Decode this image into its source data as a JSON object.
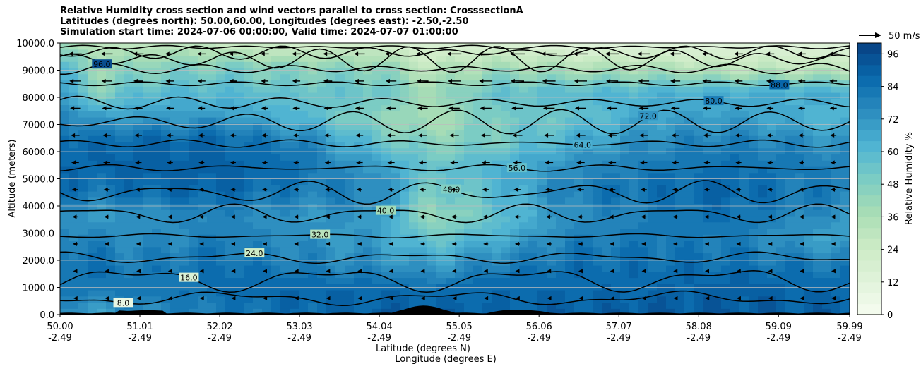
{
  "title_lines": [
    "Relative Humidity cross section and wind vectors parallel to cross section: CrosssectionA",
    "Latitudes (degrees north): 50.00,60.00, Longitudes (degrees east): -2.50,-2.50",
    "Simulation start time: 2024-07-06 00:00:00, Valid time: 2024-07-07 01:00:00"
  ],
  "chart_data": {
    "type": "heatmap",
    "title": "Relative Humidity cross section and wind vectors parallel to cross section: CrosssectionA",
    "ylabel": "Altitude (meters)",
    "xlabel_lines": [
      "Latitude (degrees N)",
      "Longitude (degrees E)"
    ],
    "ylim": [
      0,
      10000
    ],
    "xlim": [
      50.0,
      59.99
    ],
    "y_ticks": [
      "0.0",
      "1000.0",
      "2000.0",
      "3000.0",
      "4000.0",
      "5000.0",
      "6000.0",
      "7000.0",
      "8000.0",
      "9000.0",
      "10000.0"
    ],
    "x_ticks": [
      {
        "lat": "50.00",
        "lon": "-2.49"
      },
      {
        "lat": "51.01",
        "lon": "-2.49"
      },
      {
        "lat": "52.02",
        "lon": "-2.49"
      },
      {
        "lat": "53.03",
        "lon": "-2.49"
      },
      {
        "lat": "54.04",
        "lon": "-2.49"
      },
      {
        "lat": "55.05",
        "lon": "-2.49"
      },
      {
        "lat": "56.06",
        "lon": "-2.49"
      },
      {
        "lat": "57.07",
        "lon": "-2.49"
      },
      {
        "lat": "58.08",
        "lon": "-2.49"
      },
      {
        "lat": "59.09",
        "lon": "-2.49"
      },
      {
        "lat": "59.99",
        "lon": "-2.49"
      }
    ],
    "colorbar": {
      "label": "Relative Humidity %",
      "ticks": [
        "0",
        "12",
        "24",
        "36",
        "48",
        "60",
        "72",
        "84",
        "96"
      ],
      "range": [
        0,
        100
      ],
      "colormap": "GnBu"
    },
    "wind_reference": "50 m/s",
    "contour_labels": [
      "8.0",
      "16.0",
      "24.0",
      "32.0",
      "40.0",
      "48.0",
      "56.0",
      "64.0",
      "72.0",
      "80.0",
      "88.0",
      "96.0"
    ],
    "humidity_profile": [
      {
        "lat": 50.0,
        "rh": [
          70,
          82,
          85,
          80,
          72,
          85,
          88,
          88,
          80,
          70,
          60,
          40
        ]
      },
      {
        "lat": 50.5,
        "rh": [
          70,
          80,
          85,
          78,
          70,
          82,
          88,
          85,
          70,
          45,
          40,
          30
        ]
      },
      {
        "lat": 51.0,
        "rh": [
          75,
          82,
          80,
          75,
          72,
          85,
          90,
          88,
          70,
          60,
          45,
          30
        ]
      },
      {
        "lat": 52.0,
        "rh": [
          80,
          85,
          85,
          80,
          78,
          88,
          90,
          88,
          72,
          60,
          50,
          25
        ]
      },
      {
        "lat": 53.0,
        "rh": [
          85,
          88,
          80,
          75,
          72,
          80,
          85,
          80,
          62,
          55,
          45,
          20
        ]
      },
      {
        "lat": 54.0,
        "rh": [
          90,
          88,
          75,
          70,
          72,
          78,
          70,
          55,
          45,
          55,
          45,
          20
        ]
      },
      {
        "lat": 54.7,
        "rh": [
          90,
          85,
          70,
          55,
          40,
          50,
          55,
          45,
          35,
          40,
          30,
          15
        ]
      },
      {
        "lat": 55.5,
        "rh": [
          88,
          88,
          80,
          65,
          55,
          60,
          62,
          50,
          50,
          55,
          40,
          15
        ]
      },
      {
        "lat": 56.5,
        "rh": [
          90,
          88,
          85,
          80,
          75,
          80,
          75,
          65,
          55,
          60,
          35,
          10
        ]
      },
      {
        "lat": 57.5,
        "rh": [
          92,
          88,
          85,
          82,
          80,
          85,
          82,
          75,
          68,
          62,
          35,
          10
        ]
      },
      {
        "lat": 58.5,
        "rh": [
          92,
          90,
          85,
          80,
          85,
          88,
          85,
          80,
          70,
          65,
          30,
          10
        ]
      },
      {
        "lat": 59.5,
        "rh": [
          90,
          88,
          82,
          70,
          75,
          82,
          80,
          75,
          62,
          65,
          30,
          10
        ]
      },
      {
        "lat": 59.99,
        "rh": [
          90,
          88,
          80,
          68,
          72,
          80,
          78,
          72,
          60,
          65,
          30,
          10
        ]
      }
    ]
  }
}
